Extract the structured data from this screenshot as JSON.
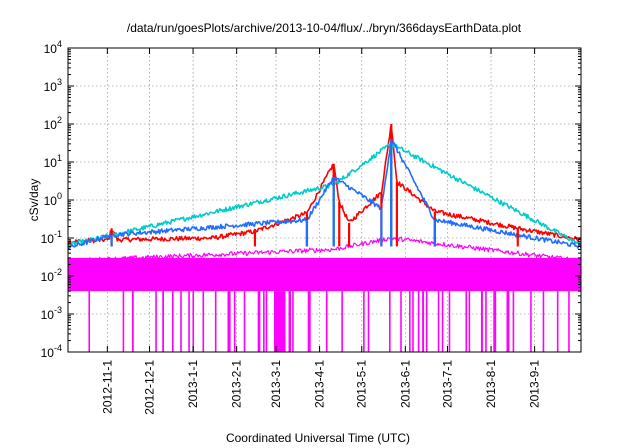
{
  "chart_data": {
    "type": "line",
    "title": "/data/run/goesPlots/archive/2013-10-04/flux/../bryn/366daysEarthData.plot",
    "xlabel": "Coordinated Universal Time (UTC)",
    "ylabel": "cSv/day",
    "yscale": "log",
    "ylim": [
      0.0001,
      10000
    ],
    "y_ticks": [
      {
        "base": "10",
        "exp": "-4"
      },
      {
        "base": "10",
        "exp": "-3"
      },
      {
        "base": "10",
        "exp": "-2"
      },
      {
        "base": "10",
        "exp": "-1"
      },
      {
        "base": "10",
        "exp": "0"
      },
      {
        "base": "10",
        "exp": "1"
      },
      {
        "base": "10",
        "exp": "2"
      },
      {
        "base": "10",
        "exp": "3"
      },
      {
        "base": "10",
        "exp": "4"
      }
    ],
    "xlim": [
      "2012-10-04",
      "2013-10-04"
    ],
    "x_ticks": [
      "2012-11-1",
      "2012-12-1",
      "2013-1-1",
      "2013-2-1",
      "2013-3-1",
      "2013-4-1",
      "2013-5-1",
      "2013-6-1",
      "2013-7-1",
      "2013-8-1",
      "2013-9-1"
    ],
    "x_tick_dates": [
      "2012-11-01",
      "2012-12-01",
      "2013-01-01",
      "2013-02-01",
      "2013-03-01",
      "2013-04-01",
      "2013-05-01",
      "2013-06-01",
      "2013-07-01",
      "2013-08-01",
      "2013-09-01"
    ],
    "grid": true,
    "legend": "none",
    "baseline_band": [
      0.004,
      0.03
    ],
    "dropouts_to": 0.0001,
    "series": [
      {
        "color": "#ff0000",
        "values": [
          [
            "2012-10-04",
            0.08
          ],
          [
            "2012-11-02",
            0.09
          ],
          [
            "2012-11-04",
            0.18
          ],
          [
            "2012-11-08",
            0.09
          ],
          [
            "2013-01-15",
            0.1
          ],
          [
            "2013-02-14",
            0.15
          ],
          [
            "2013-03-23",
            0.45
          ],
          [
            "2013-04-11",
            9.0
          ],
          [
            "2013-04-15",
            0.9
          ],
          [
            "2013-04-22",
            0.25
          ],
          [
            "2013-05-15",
            1.6
          ],
          [
            "2013-05-22",
            100
          ],
          [
            "2013-05-26",
            3.0
          ],
          [
            "2013-06-22",
            0.5
          ],
          [
            "2013-08-20",
            0.18
          ],
          [
            "2013-10-04",
            0.09
          ]
        ]
      },
      {
        "color": "#00cccc",
        "values": [
          [
            "2012-10-04",
            0.065
          ],
          [
            "2013-04-11",
            2.5
          ],
          [
            "2013-05-22",
            30
          ],
          [
            "2013-10-04",
            0.065
          ]
        ]
      },
      {
        "color": "#1f6fff",
        "values": [
          [
            "2012-10-04",
            0.055
          ],
          [
            "2012-11-04",
            0.12
          ],
          [
            "2013-03-23",
            0.3
          ],
          [
            "2013-04-11",
            4.0
          ],
          [
            "2013-05-15",
            0.6
          ],
          [
            "2013-05-22",
            40
          ],
          [
            "2013-06-22",
            0.3
          ],
          [
            "2013-10-04",
            0.06
          ]
        ]
      },
      {
        "color": "#ff00ff",
        "values": [
          [
            "2012-10-04",
            0.025
          ],
          [
            "2013-04-11",
            0.05
          ],
          [
            "2013-05-22",
            0.1
          ],
          [
            "2013-10-04",
            0.025
          ]
        ]
      }
    ]
  }
}
